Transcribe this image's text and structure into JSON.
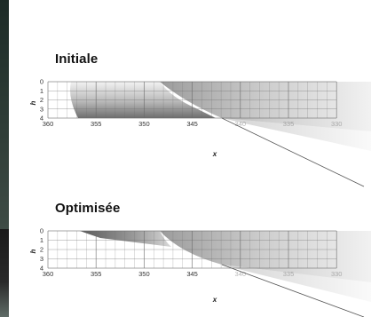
{
  "panels": [
    {
      "title": "Initiale",
      "xlabel": "x",
      "ylabel": "h",
      "xticks": [
        "360",
        "355",
        "350",
        "345",
        "340",
        "335",
        "330"
      ],
      "yticks": [
        "0",
        "1",
        "2",
        "3",
        "4"
      ]
    },
    {
      "title": "Optimisée",
      "xlabel": "x",
      "ylabel": "h",
      "xticks": [
        "360",
        "355",
        "350",
        "345",
        "340",
        "335",
        "330"
      ],
      "yticks": [
        "0",
        "1",
        "2",
        "3",
        "4"
      ]
    }
  ],
  "colors": {
    "grid": "#6a6a6a",
    "shape_dark": "#707070",
    "shape_light": "#e4e4e4",
    "text": "#111111"
  }
}
